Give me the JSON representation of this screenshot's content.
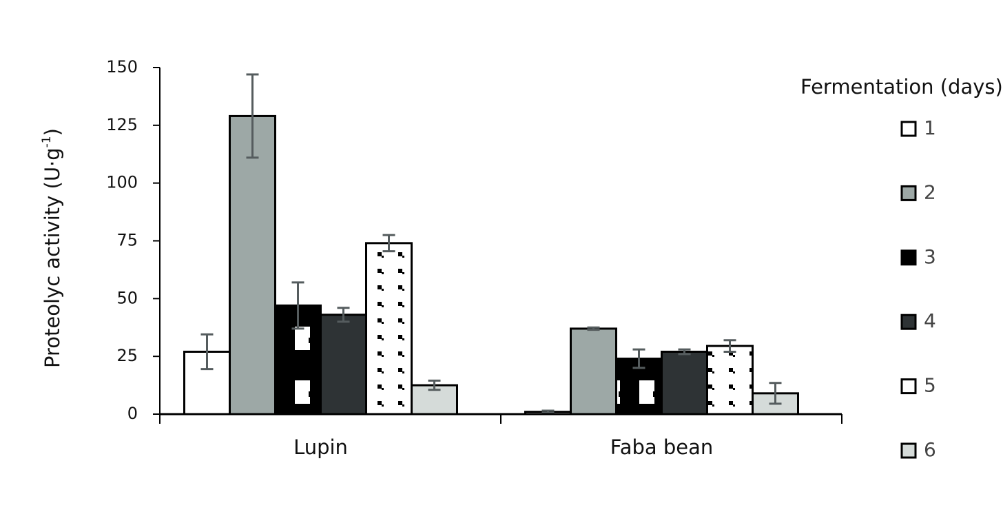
{
  "chart_data": {
    "type": "bar",
    "y_label": [
      "Proteolyc activity (U·g",
      "-1",
      ")"
    ],
    "categories": [
      "Lupin",
      "Faba bean"
    ],
    "legend_title": "Fermentation (days)",
    "ylim": [
      0,
      150
    ],
    "yticks": [
      0,
      25,
      50,
      75,
      100,
      125,
      150
    ],
    "error_color": "#555c5e",
    "series": [
      {
        "name": "1",
        "color": "#ffffff",
        "values": [
          27,
          1
        ],
        "errors": [
          7.5,
          0.5
        ]
      },
      {
        "name": "2",
        "color": "#9da8a6",
        "values": [
          129,
          37
        ],
        "errors": [
          18,
          0.5
        ]
      },
      {
        "name": "3",
        "color": "#000000",
        "pattern": "squares",
        "values": [
          47,
          24
        ],
        "errors": [
          10,
          4
        ]
      },
      {
        "name": "4",
        "color": "#2e3335",
        "values": [
          43,
          27
        ],
        "errors": [
          3,
          1
        ]
      },
      {
        "name": "5",
        "color": "#ffffff",
        "pattern": "dots",
        "values": [
          74,
          29.5
        ],
        "errors": [
          3.5,
          2.5
        ]
      },
      {
        "name": "6",
        "color": "#d5dbd9",
        "values": [
          12.5,
          9
        ],
        "errors": [
          2,
          4.5
        ]
      }
    ]
  }
}
